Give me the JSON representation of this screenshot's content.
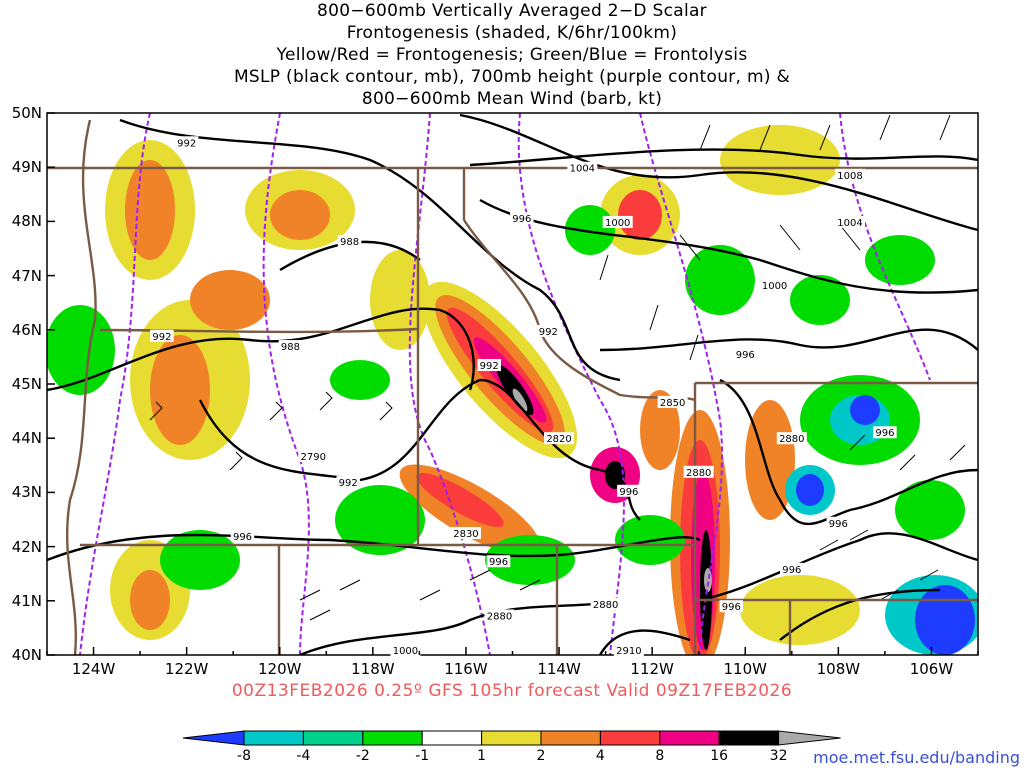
{
  "title_lines": [
    "800−600mb Vertically Averaged 2−D Scalar",
    "Frontogenesis (shaded, K/6hr/100km)",
    "Yellow/Red = Frontogenesis;  Green/Blue = Frontolysis",
    "MSLP (black contour, mb), 700mb height (purple contour, m) &",
    "800−600mb Mean Wind (barb, kt)"
  ],
  "subtitle": "00Z13FEB2026 0.25º GFS 105hr forecast Valid 09Z17FEB2026",
  "credit": "moe.met.fsu.edu/banding",
  "map": {
    "lon_range": [
      -125,
      -105
    ],
    "lat_range": [
      40,
      50
    ],
    "lat_labels": [
      "50N",
      "49N",
      "48N",
      "47N",
      "46N",
      "45N",
      "44N",
      "43N",
      "42N",
      "41N",
      "40N"
    ],
    "lon_labels": [
      "124W",
      "122W",
      "120W",
      "118W",
      "116W",
      "114W",
      "112W",
      "110W",
      "108W",
      "106W"
    ],
    "contour_labels": [
      {
        "text": "992",
        "lon": -122.0,
        "lat": 49.46
      },
      {
        "text": "1004",
        "lon": -113.5,
        "lat": 48.99
      },
      {
        "text": "1008",
        "lon": -107.75,
        "lat": 48.86
      },
      {
        "text": "996",
        "lon": -114.8,
        "lat": 48.06
      },
      {
        "text": "1000",
        "lon": -112.74,
        "lat": 47.99
      },
      {
        "text": "1004",
        "lon": -107.75,
        "lat": 47.99
      },
      {
        "text": "988",
        "lon": -118.5,
        "lat": 47.64
      },
      {
        "text": "1000",
        "lon": -109.37,
        "lat": 46.83
      },
      {
        "text": "992",
        "lon": -122.53,
        "lat": 45.89
      },
      {
        "text": "988",
        "lon": -119.77,
        "lat": 45.7
      },
      {
        "text": "992",
        "lon": -114.23,
        "lat": 45.98
      },
      {
        "text": "996",
        "lon": -110.0,
        "lat": 45.55
      },
      {
        "text": "992",
        "lon": -115.5,
        "lat": 45.35
      },
      {
        "text": "2850",
        "lon": -111.56,
        "lat": 44.67
      },
      {
        "text": "2820",
        "lon": -114.0,
        "lat": 44.0
      },
      {
        "text": "2880",
        "lon": -109.0,
        "lat": 44.0
      },
      {
        "text": "996",
        "lon": -107.0,
        "lat": 44.11
      },
      {
        "text": "2880",
        "lon": -111.0,
        "lat": 43.38
      },
      {
        "text": "2790",
        "lon": -119.28,
        "lat": 43.67
      },
      {
        "text": "992",
        "lon": -118.53,
        "lat": 43.19
      },
      {
        "text": "996",
        "lon": -112.5,
        "lat": 43.03
      },
      {
        "text": "996",
        "lon": -108.0,
        "lat": 42.44
      },
      {
        "text": "2830",
        "lon": -116.0,
        "lat": 42.25
      },
      {
        "text": "996",
        "lon": -120.8,
        "lat": 42.2
      },
      {
        "text": "996",
        "lon": -115.3,
        "lat": 41.73
      },
      {
        "text": "996",
        "lon": -109.0,
        "lat": 41.59
      },
      {
        "text": "996",
        "lon": -110.3,
        "lat": 40.9
      },
      {
        "text": "2880",
        "lon": -115.28,
        "lat": 40.73
      },
      {
        "text": "2880",
        "lon": -113.0,
        "lat": 40.94
      },
      {
        "text": "1000",
        "lon": -117.3,
        "lat": 40.09
      },
      {
        "text": "2910",
        "lon": -112.5,
        "lat": 40.09
      }
    ]
  },
  "colorbar": {
    "labels": [
      "-8",
      "-4",
      "-2",
      "-1",
      "1",
      "2",
      "4",
      "8",
      "16",
      "32"
    ],
    "colors": [
      "#1e3cff",
      "#00c8c8",
      "#00d28c",
      "#00dc00",
      "#ffffff",
      "#e6dc32",
      "#f08228",
      "#fa3c3c",
      "#f00082",
      "#000000",
      "#aaaaaa"
    ]
  }
}
